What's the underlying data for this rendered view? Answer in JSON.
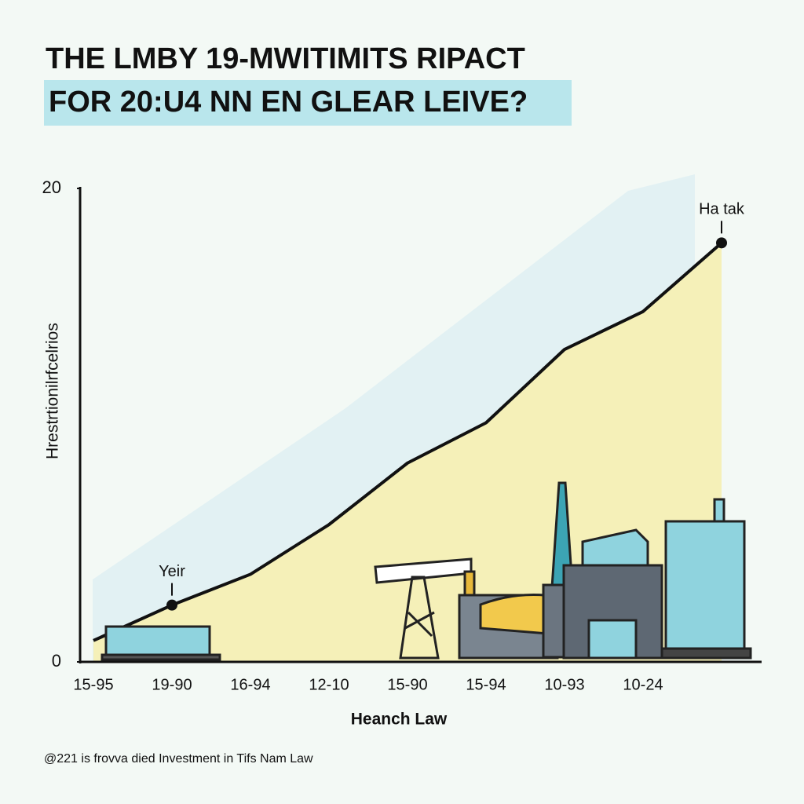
{
  "chart_data": {
    "type": "line",
    "title": [
      "THE LMBY 19-MWITIMITS RIPACT",
      "FOR 20:U4 NN EN GLEAR LEIVE?"
    ],
    "x_label": "Heanch Law",
    "y_label": "Hrestrtionilrfcelrios",
    "categories": [
      "15-95",
      "19-90",
      "16-94",
      "12-10",
      "15-90",
      "15-94",
      "10-93",
      "10-24",
      null
    ],
    "series": [
      {
        "color": "#111111",
        "values": [
          0.9,
          2.4,
          3.7,
          5.8,
          8.4,
          10.1,
          13.2,
          14.8,
          17.7
        ]
      }
    ],
    "area_color": "#f5f0b8",
    "ylim": [
      0,
      20
    ],
    "yticks": [
      0,
      20
    ],
    "annotations": [
      {
        "text": "Yeir",
        "index": 1
      },
      {
        "text": "Ha tak",
        "index": 8
      }
    ],
    "footnote": "@221 is frovva died Investment in Tifs Nam Law"
  }
}
